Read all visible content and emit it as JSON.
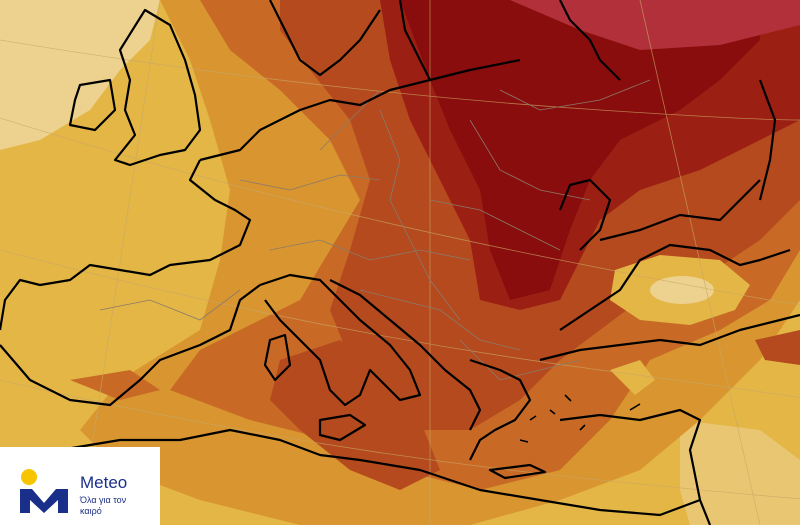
{
  "map": {
    "type": "forecast-anomaly-map",
    "region": "Europe",
    "palette": {
      "pale": "#edd28f",
      "light": "#e3b646",
      "mid": "#d89530",
      "orange": "#c86a26",
      "rust": "#b44a1e",
      "red": "#9c1f14",
      "dark": "#8a0d0d",
      "crimson": "#b2303a",
      "coast": "#000000",
      "border": "#8a7a6a",
      "graticule": "#c9a866"
    }
  },
  "logo": {
    "brand": "Meteo",
    "tagline": "Όλα για τον καιρό",
    "colors": {
      "blue": "#1a2f8a",
      "sun": "#f6c400"
    }
  }
}
